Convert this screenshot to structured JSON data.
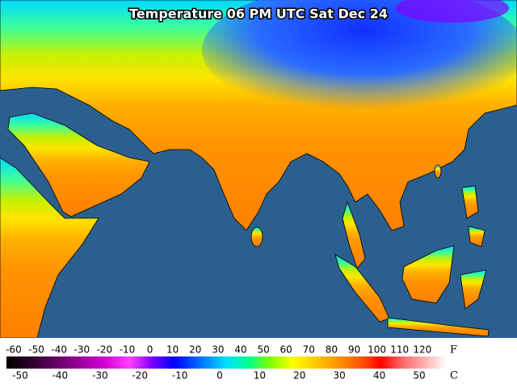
{
  "title": "Temperature 06 PM UTC Sat Dec 24",
  "legend": {
    "fahrenheit": {
      "unit": "F",
      "ticks": [
        -60,
        -50,
        -40,
        -30,
        -20,
        -10,
        0,
        10,
        20,
        30,
        40,
        50,
        60,
        70,
        80,
        90,
        100,
        110,
        120
      ]
    },
    "celsius": {
      "unit": "C",
      "ticks": [
        -50,
        -40,
        -30,
        -20,
        -10,
        0,
        10,
        20,
        30,
        40,
        50
      ]
    }
  }
}
